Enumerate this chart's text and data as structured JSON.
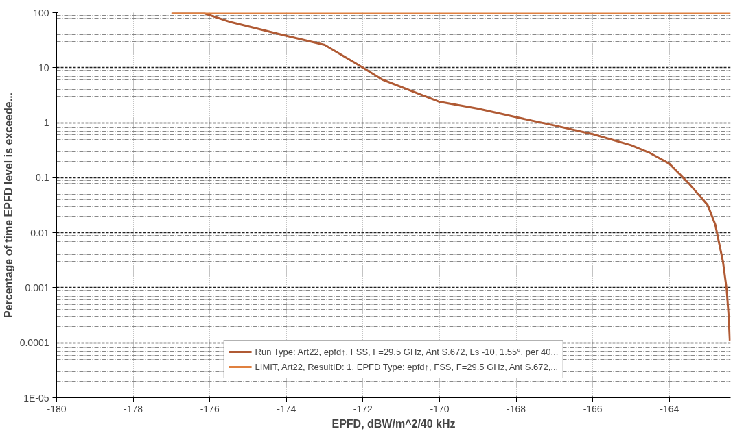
{
  "chart_data": {
    "type": "line",
    "xlabel": "EPFD, dBW/m^2/40 kHz",
    "ylabel": "Percentage of time EPFD level is exceede...",
    "log": "y",
    "grid": true,
    "legend": "bottom",
    "line_style": "solid",
    "marker": "none",
    "xlim": [
      -180,
      -162.4
    ],
    "xticks": [
      -180,
      -178,
      -176,
      -174,
      -172,
      -170,
      -168,
      -166,
      -164
    ],
    "ylim": [
      1e-05,
      100
    ],
    "yticks": [
      {
        "value": 1e-05,
        "label": "1E-05"
      },
      0.0001,
      0.001,
      0.01,
      0.1,
      1,
      10,
      100
    ],
    "series": [
      {
        "name": "Run Type: Art22, epfd↑, FSS, F=29.5 GHz, Ant S.672, Ls -10, 1.55°, per 40...",
        "color": "#b05a34",
        "x": [
          -177,
          -176.2,
          -175.5,
          -174,
          -173,
          -172,
          -171.5,
          -170,
          -169,
          -168,
          -167,
          -166,
          -165,
          -164.5,
          -164,
          -163.5,
          -163,
          -162.8,
          -162.6,
          -162.5,
          -162.45,
          -162.42
        ],
        "values": [
          100,
          100,
          69,
          38,
          26,
          10,
          6.1,
          2.4,
          1.8,
          1.26,
          0.89,
          0.62,
          0.39,
          0.28,
          0.18,
          0.08,
          0.032,
          0.014,
          0.003,
          0.0009,
          0.0003,
          0.00011
        ]
      },
      {
        "name": "LIMIT, Art22, ResultID: 1, EPFD Type: epfd↑, FSS, F=29.5 GHz, Ant S.672,...",
        "color": "#e0803f",
        "x": [
          -177,
          -162.4
        ],
        "values": [
          100,
          100
        ]
      }
    ]
  }
}
